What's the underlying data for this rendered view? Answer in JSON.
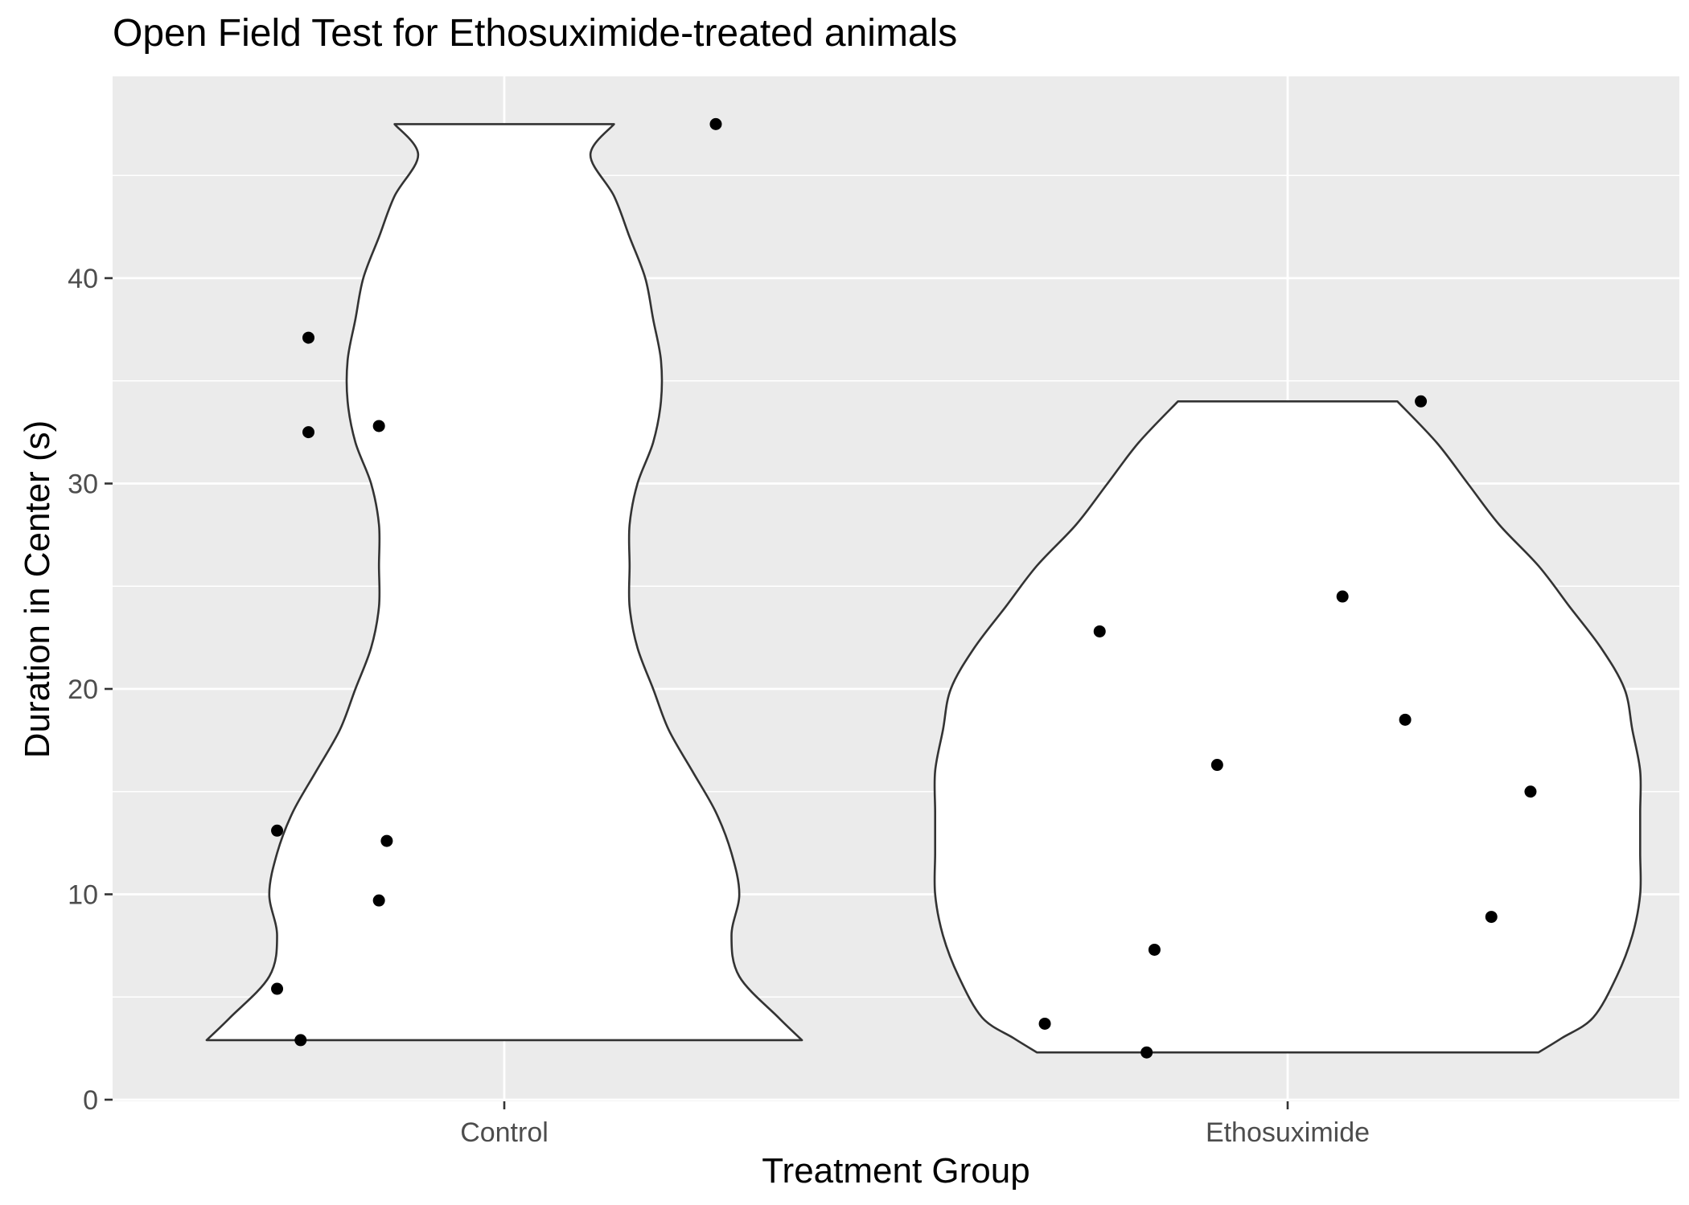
{
  "chart_data": {
    "type": "violin",
    "title": "Open Field Test for Ethosuximide-treated animals",
    "xlabel": "Treatment Group",
    "ylabel": "Duration in Center (s)",
    "categories": [
      "Control",
      "Ethosuximide"
    ],
    "ylim": [
      0,
      50
    ],
    "yticks": [
      0,
      10,
      20,
      30,
      40
    ],
    "grid": true,
    "legend": "none",
    "series": [
      {
        "category": "Control",
        "points": [
          {
            "jitter": 0.27,
            "value": 47.5
          },
          {
            "jitter": -0.25,
            "value": 37.1
          },
          {
            "jitter": -0.25,
            "value": 32.5
          },
          {
            "jitter": -0.16,
            "value": 32.8
          },
          {
            "jitter": -0.29,
            "value": 13.1
          },
          {
            "jitter": -0.15,
            "value": 12.6
          },
          {
            "jitter": -0.16,
            "value": 9.7
          },
          {
            "jitter": -0.29,
            "value": 5.4
          },
          {
            "jitter": -0.26,
            "value": 2.9
          }
        ],
        "violin_halfwidth": [
          [
            2.9,
            0.38
          ],
          [
            4,
            0.35
          ],
          [
            6,
            0.3
          ],
          [
            8,
            0.29
          ],
          [
            10,
            0.3
          ],
          [
            12,
            0.29
          ],
          [
            14,
            0.27
          ],
          [
            16,
            0.24
          ],
          [
            18,
            0.21
          ],
          [
            20,
            0.19
          ],
          [
            22,
            0.17
          ],
          [
            24,
            0.16
          ],
          [
            26,
            0.16
          ],
          [
            28,
            0.16
          ],
          [
            30,
            0.17
          ],
          [
            32,
            0.19
          ],
          [
            34,
            0.2
          ],
          [
            36,
            0.2
          ],
          [
            38,
            0.19
          ],
          [
            40,
            0.18
          ],
          [
            42,
            0.16
          ],
          [
            44,
            0.14
          ],
          [
            46,
            0.11
          ],
          [
            47.5,
            0.14
          ]
        ]
      },
      {
        "category": "Ethosuximide",
        "points": [
          {
            "jitter": 0.17,
            "value": 34.0
          },
          {
            "jitter": 0.07,
            "value": 24.5
          },
          {
            "jitter": -0.24,
            "value": 22.8
          },
          {
            "jitter": 0.15,
            "value": 18.5
          },
          {
            "jitter": -0.09,
            "value": 16.3
          },
          {
            "jitter": 0.31,
            "value": 15.0
          },
          {
            "jitter": 0.26,
            "value": 8.9
          },
          {
            "jitter": -0.17,
            "value": 7.3
          },
          {
            "jitter": -0.31,
            "value": 3.7
          },
          {
            "jitter": -0.18,
            "value": 2.3
          }
        ],
        "violin_halfwidth": [
          [
            2.3,
            0.32
          ],
          [
            3,
            0.35
          ],
          [
            4,
            0.39
          ],
          [
            6,
            0.42
          ],
          [
            8,
            0.44
          ],
          [
            10,
            0.45
          ],
          [
            12,
            0.45
          ],
          [
            14,
            0.45
          ],
          [
            16,
            0.45
          ],
          [
            18,
            0.44
          ],
          [
            20,
            0.43
          ],
          [
            22,
            0.4
          ],
          [
            24,
            0.36
          ],
          [
            26,
            0.32
          ],
          [
            28,
            0.27
          ],
          [
            30,
            0.23
          ],
          [
            32,
            0.19
          ],
          [
            34.0,
            0.14
          ]
        ]
      }
    ]
  }
}
